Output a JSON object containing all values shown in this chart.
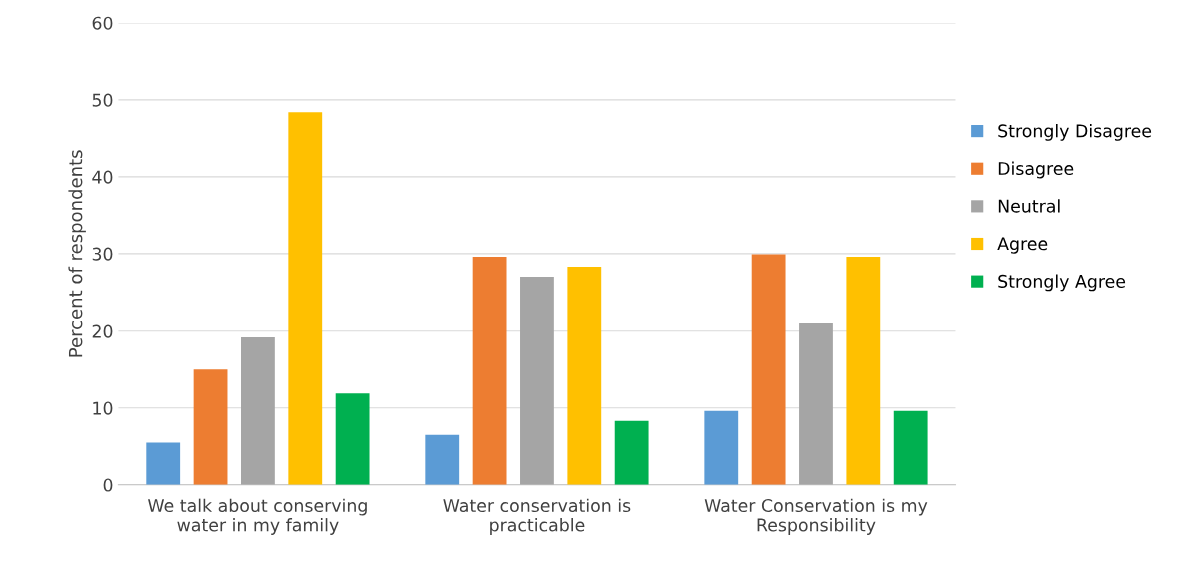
{
  "chart_data": {
    "type": "bar",
    "ylabel": "Percent of respondents",
    "categories": [
      "We talk about conserving water in my family",
      "Water conservation is practicable",
      "Water Conservation is my Responsibility"
    ],
    "series": [
      {
        "name": "Strongly Disagree",
        "color": "#5b9bd5",
        "values": [
          5.5,
          6.5,
          9.6
        ]
      },
      {
        "name": "Disagree",
        "color": "#ed7d31",
        "values": [
          15,
          29.6,
          29.9
        ]
      },
      {
        "name": "Neutral",
        "color": "#a5a5a5",
        "values": [
          19.2,
          27,
          21
        ]
      },
      {
        "name": "Agree",
        "color": "#ffc000",
        "values": [
          48.4,
          28.3,
          29.6
        ]
      },
      {
        "name": "Strongly Agree",
        "color": "#00b050",
        "values": [
          11.9,
          8.3,
          9.6
        ]
      }
    ],
    "ylim": [
      0,
      60
    ],
    "yticks": [
      0,
      10,
      20,
      30,
      40,
      50,
      60
    ],
    "grid": "y",
    "legend": "right"
  }
}
